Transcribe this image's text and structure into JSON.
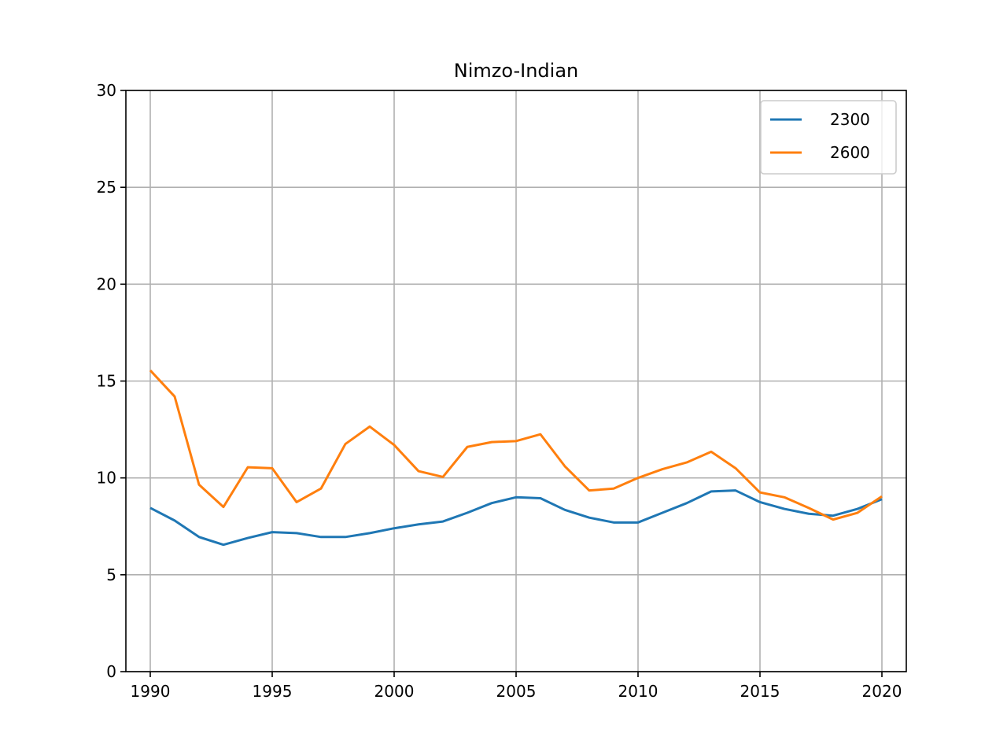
{
  "chart_data": {
    "type": "line",
    "title": "Nimzo-Indian",
    "xlabel": "",
    "ylabel": "",
    "xlim": [
      1989,
      2021
    ],
    "ylim": [
      0,
      30
    ],
    "xticks": [
      1990,
      1995,
      2000,
      2005,
      2010,
      2015,
      2020
    ],
    "yticks": [
      0,
      5,
      10,
      15,
      20,
      25,
      30
    ],
    "grid": true,
    "legend": "top-right",
    "x": [
      1990,
      1991,
      1992,
      1993,
      1994,
      1995,
      1996,
      1997,
      1998,
      1999,
      2000,
      2001,
      2002,
      2003,
      2004,
      2005,
      2006,
      2007,
      2008,
      2009,
      2010,
      2011,
      2012,
      2013,
      2014,
      2015,
      2016,
      2017,
      2018,
      2019,
      2020
    ],
    "series": [
      {
        "name": "2300",
        "color": "#1f77b4",
        "values": [
          8.45,
          7.8,
          6.95,
          6.55,
          6.9,
          7.2,
          7.15,
          6.95,
          6.95,
          7.15,
          7.4,
          7.6,
          7.75,
          8.2,
          8.7,
          9.0,
          8.95,
          8.35,
          7.95,
          7.7,
          7.7,
          8.2,
          8.7,
          9.3,
          9.35,
          8.75,
          8.4,
          8.15,
          8.05,
          8.4,
          8.9
        ]
      },
      {
        "name": "2600",
        "color": "#ff7f0e",
        "values": [
          15.55,
          14.2,
          9.65,
          8.5,
          10.55,
          10.5,
          8.75,
          9.45,
          11.75,
          12.65,
          11.7,
          10.35,
          10.05,
          11.6,
          11.85,
          11.9,
          12.25,
          10.6,
          9.35,
          9.45,
          10.0,
          10.45,
          10.8,
          11.35,
          10.5,
          9.25,
          9.0,
          8.45,
          7.85,
          8.2,
          9.05
        ]
      }
    ]
  }
}
